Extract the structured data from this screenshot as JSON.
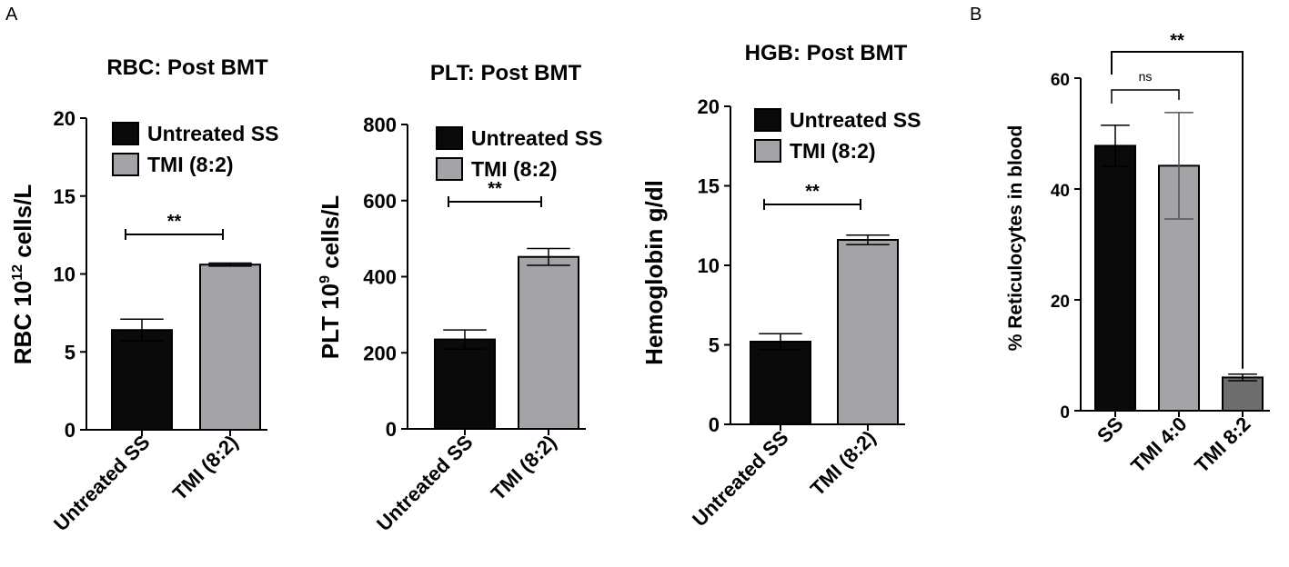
{
  "panel_labels": [
    "A",
    "B"
  ],
  "chart_data": [
    {
      "type": "bar",
      "title": "RBC: Post BMT",
      "ylabel": "RBC 10",
      "ylabel_sup": "12",
      "ylabel_suffix": " cells/L",
      "categories": [
        "Untreated SS",
        "TMI (8:2)"
      ],
      "series": [
        {
          "name": "Untreated SS",
          "values": [
            6.4,
            null
          ],
          "errors": [
            0.7,
            null
          ],
          "color": "#0a0a0a"
        },
        {
          "name": "TMI (8:2)",
          "values": [
            null,
            10.6
          ],
          "errors": [
            null,
            0.1
          ],
          "color": "#a4a4a8"
        }
      ],
      "ylim": [
        0,
        20
      ],
      "yticks": [
        0,
        5,
        10,
        15,
        20
      ],
      "legend": "top-right",
      "significance": [
        {
          "label": "**",
          "between": [
            0,
            1
          ]
        }
      ]
    },
    {
      "type": "bar",
      "title": "PLT: Post BMT",
      "ylabel": "PLT 10",
      "ylabel_sup": "9",
      "ylabel_suffix": " cells/L",
      "categories": [
        "Untreated SS",
        "TMI (8:2)"
      ],
      "series": [
        {
          "name": "Untreated SS",
          "values": [
            235,
            null
          ],
          "errors": [
            25,
            null
          ],
          "color": "#0a0a0a"
        },
        {
          "name": "TMI (8:2)",
          "values": [
            null,
            452
          ],
          "errors": [
            null,
            22
          ],
          "color": "#a4a4a8"
        }
      ],
      "ylim": [
        0,
        800
      ],
      "yticks": [
        0,
        200,
        400,
        600,
        800
      ],
      "legend": "top-right",
      "significance": [
        {
          "label": "**",
          "between": [
            0,
            1
          ]
        }
      ]
    },
    {
      "type": "bar",
      "title": "HGB: Post BMT",
      "ylabel": "Hemoglobin g/dl",
      "ylabel_sup": "",
      "ylabel_suffix": "",
      "categories": [
        "Untreated SS",
        "TMI (8:2)"
      ],
      "series": [
        {
          "name": "Untreated SS",
          "values": [
            5.2,
            null
          ],
          "errors": [
            0.5,
            null
          ],
          "color": "#0a0a0a"
        },
        {
          "name": "TMI (8:2)",
          "values": [
            null,
            11.6
          ],
          "errors": [
            null,
            0.3
          ],
          "color": "#a4a4a8"
        }
      ],
      "ylim": [
        0,
        20
      ],
      "yticks": [
        0,
        5,
        10,
        15,
        20
      ],
      "legend": "top-right",
      "significance": [
        {
          "label": "**",
          "between": [
            0,
            1
          ]
        }
      ]
    },
    {
      "type": "bar",
      "title": "",
      "ylabel": "% Reticulocytes in blood",
      "categories": [
        "SS",
        "TMI 4:0",
        "TMI 8:2"
      ],
      "values": [
        47.8,
        44.2,
        6.0
      ],
      "errors": [
        3.7,
        9.6,
        0.6
      ],
      "colors": [
        "#0a0a0a",
        "#a4a4a8",
        "#6e6e6e"
      ],
      "ylim": [
        0,
        60
      ],
      "yticks": [
        0,
        20,
        40,
        60
      ],
      "significance": [
        {
          "label": "ns",
          "between": [
            0,
            1
          ]
        },
        {
          "label": "**",
          "between": [
            0,
            2
          ]
        }
      ]
    }
  ]
}
